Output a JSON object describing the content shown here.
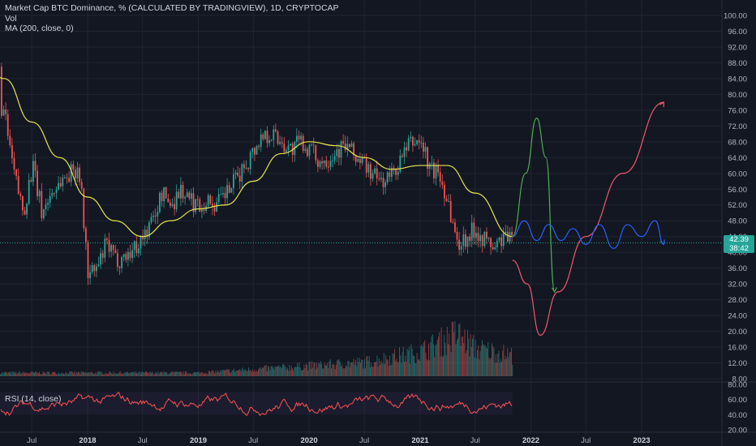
{
  "legend": {
    "title": "Market Cap BTC Dominance, % (CALCULATED BY TRADINGVIEW), 1D, CRYPTOCAP",
    "vol": "Vol",
    "ma": "MA (200, close, 0)",
    "rsi": "RSI (14, close)"
  },
  "price_badge": {
    "value": "42.39",
    "countdown": "38:42"
  },
  "colors": {
    "background": "#131722",
    "up": "#26a69a",
    "down": "#ef5350",
    "ma": "#e7e34e",
    "rsi": "#ff5252",
    "projection_green": "#4caf50",
    "projection_blue": "#2962ff",
    "projection_red": "#f05a6e"
  },
  "chart_data": [
    {
      "type": "candlestick",
      "title": "Market Cap BTC Dominance, % (CALCULATED BY TRADINGVIEW), 1D, CRYPTOCAP",
      "ylim": [
        8,
        100
      ],
      "y_ticks": [
        "100.00",
        "96.00",
        "92.00",
        "88.00",
        "84.00",
        "80.00",
        "76.00",
        "72.00",
        "68.00",
        "64.00",
        "60.00",
        "56.00",
        "52.00",
        "48.00",
        "44.00",
        "40.00",
        "36.00",
        "32.00",
        "28.00",
        "24.00",
        "20.00",
        "16.00",
        "12.00",
        "8.00"
      ],
      "x_ticks": [
        {
          "label": "Jul",
          "date": "2017-07-01"
        },
        {
          "label": "2018",
          "date": "2018-01-01"
        },
        {
          "label": "Jul",
          "date": "2018-07-01"
        },
        {
          "label": "2019",
          "date": "2019-01-01"
        },
        {
          "label": "Jul",
          "date": "2019-07-01"
        },
        {
          "label": "2020",
          "date": "2020-01-01"
        },
        {
          "label": "Jul",
          "date": "2020-07-01"
        },
        {
          "label": "2021",
          "date": "2021-01-01"
        },
        {
          "label": "Jul",
          "date": "2021-07-01"
        },
        {
          "label": "2022",
          "date": "2022-01-01"
        },
        {
          "label": "Jul",
          "date": "2022-07-01"
        },
        {
          "label": "2023",
          "date": "2023-01-01"
        }
      ],
      "last_price": 42.39,
      "price_path": [
        [
          "2017-01-01",
          87
        ],
        [
          "2017-02-01",
          86
        ],
        [
          "2017-03-01",
          82
        ],
        [
          "2017-04-01",
          74
        ],
        [
          "2017-05-01",
          60
        ],
        [
          "2017-06-01",
          50
        ],
        [
          "2017-07-01",
          62
        ],
        [
          "2017-08-01",
          50
        ],
        [
          "2017-09-01",
          55
        ],
        [
          "2017-10-01",
          58
        ],
        [
          "2017-11-01",
          60
        ],
        [
          "2017-12-01",
          62
        ],
        [
          "2018-01-01",
          34
        ],
        [
          "2018-02-01",
          36
        ],
        [
          "2018-03-01",
          42
        ],
        [
          "2018-04-01",
          38
        ],
        [
          "2018-05-01",
          39
        ],
        [
          "2018-06-01",
          41
        ],
        [
          "2018-07-01",
          44
        ],
        [
          "2018-08-01",
          48
        ],
        [
          "2018-09-01",
          55
        ],
        [
          "2018-10-01",
          52
        ],
        [
          "2018-11-01",
          56
        ],
        [
          "2018-12-01",
          53
        ],
        [
          "2019-01-01",
          52
        ],
        [
          "2019-02-01",
          53
        ],
        [
          "2019-03-01",
          52
        ],
        [
          "2019-04-01",
          55
        ],
        [
          "2019-05-01",
          58
        ],
        [
          "2019-06-01",
          62
        ],
        [
          "2019-07-01",
          66
        ],
        [
          "2019-08-01",
          70
        ],
        [
          "2019-09-01",
          70
        ],
        [
          "2019-10-01",
          68
        ],
        [
          "2019-11-01",
          66
        ],
        [
          "2019-12-01",
          68
        ],
        [
          "2020-01-01",
          66
        ],
        [
          "2020-02-01",
          63
        ],
        [
          "2020-03-01",
          64
        ],
        [
          "2020-04-01",
          66
        ],
        [
          "2020-05-01",
          67
        ],
        [
          "2020-06-01",
          64
        ],
        [
          "2020-07-01",
          62
        ],
        [
          "2020-08-01",
          59
        ],
        [
          "2020-09-01",
          58
        ],
        [
          "2020-10-01",
          60
        ],
        [
          "2020-11-01",
          64
        ],
        [
          "2020-12-01",
          68
        ],
        [
          "2021-01-01",
          68
        ],
        [
          "2021-02-01",
          61
        ],
        [
          "2021-03-01",
          60
        ],
        [
          "2021-04-01",
          53
        ],
        [
          "2021-05-01",
          42
        ],
        [
          "2021-06-01",
          44
        ],
        [
          "2021-07-01",
          46
        ],
        [
          "2021-08-01",
          43
        ],
        [
          "2021-09-01",
          41
        ],
        [
          "2021-10-01",
          44
        ],
        [
          "2021-11-01",
          42.39
        ]
      ],
      "moving_average": {
        "name": "MA (200, close, 0)",
        "path": [
          [
            "2017-01-01",
            91
          ],
          [
            "2017-04-01",
            84
          ],
          [
            "2017-07-01",
            73
          ],
          [
            "2017-10-01",
            64
          ],
          [
            "2018-01-01",
            54
          ],
          [
            "2018-04-01",
            48
          ],
          [
            "2018-07-01",
            44
          ],
          [
            "2018-10-01",
            48
          ],
          [
            "2019-01-01",
            51
          ],
          [
            "2019-04-01",
            52
          ],
          [
            "2019-07-01",
            58
          ],
          [
            "2019-10-01",
            65
          ],
          [
            "2020-01-01",
            68
          ],
          [
            "2020-04-01",
            67
          ],
          [
            "2020-07-01",
            64
          ],
          [
            "2020-10-01",
            61
          ],
          [
            "2021-01-01",
            62
          ],
          [
            "2021-04-01",
            62
          ],
          [
            "2021-07-01",
            55
          ],
          [
            "2021-11-01",
            44
          ]
        ]
      },
      "projections": [
        {
          "color": "green",
          "path": [
            [
              "2021-11-01",
              44
            ],
            [
              "2021-12-15",
              60
            ],
            [
              "2022-01-20",
              74
            ],
            [
              "2022-02-20",
              64
            ],
            [
              "2022-03-20",
              30
            ]
          ]
        },
        {
          "color": "red",
          "path": [
            [
              "2021-11-01",
              38
            ],
            [
              "2021-12-20",
              32
            ],
            [
              "2022-02-01",
              19
            ],
            [
              "2022-04-01",
              30
            ],
            [
              "2022-07-01",
              44
            ],
            [
              "2022-11-01",
              60
            ],
            [
              "2023-03-15",
              78
            ]
          ]
        },
        {
          "color": "blue",
          "path": [
            [
              "2021-11-01",
              44
            ],
            [
              "2021-12-10",
              48
            ],
            [
              "2022-01-20",
              43
            ],
            [
              "2022-03-01",
              47
            ],
            [
              "2022-04-10",
              43
            ],
            [
              "2022-05-20",
              46
            ],
            [
              "2022-07-01",
              42
            ],
            [
              "2022-08-15",
              47
            ],
            [
              "2022-10-01",
              41
            ],
            [
              "2022-11-15",
              47
            ],
            [
              "2023-01-01",
              44
            ],
            [
              "2023-02-15",
              48
            ],
            [
              "2023-03-15",
              42
            ]
          ]
        }
      ]
    },
    {
      "type": "bar",
      "title": "Vol",
      "note": "volume histogram",
      "path": [
        [
          "2017-01-01",
          1
        ],
        [
          "2018-01-01",
          1
        ],
        [
          "2019-01-01",
          1
        ],
        [
          "2019-07-01",
          2
        ],
        [
          "2020-01-01",
          3
        ],
        [
          "2020-07-01",
          4
        ],
        [
          "2021-01-01",
          7
        ],
        [
          "2021-05-01",
          12
        ],
        [
          "2021-07-01",
          8
        ],
        [
          "2021-11-01",
          6
        ]
      ],
      "ylim": [
        0,
        14
      ]
    },
    {
      "type": "line",
      "title": "RSI (14, close)",
      "ylim": [
        20,
        80
      ],
      "y_ticks": [
        "80.00",
        "60.00",
        "40.00",
        "20.00"
      ],
      "band": [
        40,
        70
      ]
    }
  ]
}
